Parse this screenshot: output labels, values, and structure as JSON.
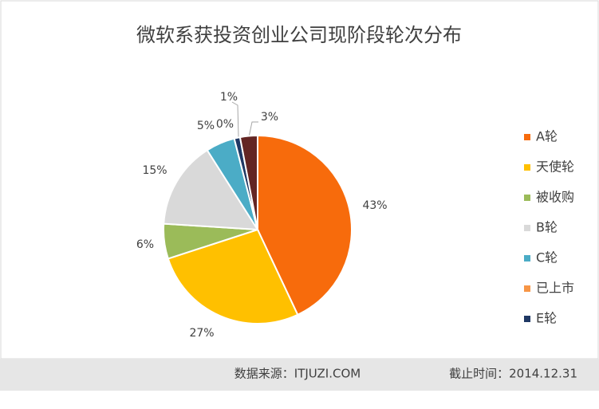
{
  "chart_data": {
    "type": "pie",
    "title": "微软系获投资创业公司现阶段轮次分布",
    "categories": [
      "A轮",
      "天使轮",
      "被收购",
      "B轮",
      "C轮",
      "已上市",
      "E轮",
      null
    ],
    "values": [
      43,
      27,
      6,
      15,
      5,
      0,
      1,
      3
    ],
    "value_labels": [
      "43%",
      "27%",
      "6%",
      "15%",
      "5%",
      "0%",
      "1%",
      "3%"
    ],
    "colors": [
      "#f76b0c",
      "#ffc000",
      "#9bbb59",
      "#d9d9d9",
      "#4bacc6",
      "#f79646",
      "#1f3864",
      "#632523"
    ],
    "legend": "right",
    "source": "数据来源：ITJUZI.COM",
    "date_note": "截止时间：2014.12.31"
  }
}
